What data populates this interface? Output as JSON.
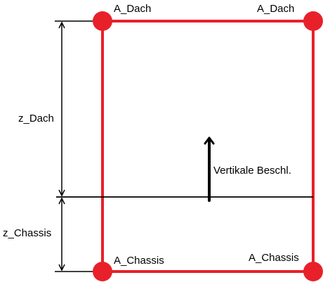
{
  "labels": {
    "roof_left": "A_Dach",
    "roof_right": "A_Dach",
    "chassis_left": "A_Chassis",
    "chassis_right": "A_Chassis",
    "z_roof": "z_Dach",
    "z_chassis": "z_Chassis",
    "vertical_accel": "Vertikale Beschl."
  },
  "colors": {
    "frame": "#e8202a",
    "node": "#e8202a",
    "dimension": "#000000"
  }
}
